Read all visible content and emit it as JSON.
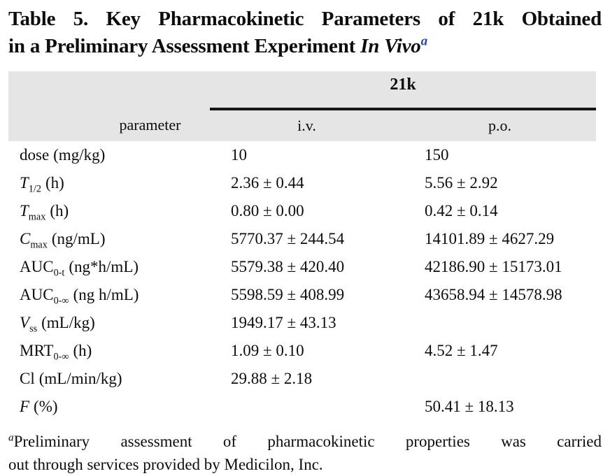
{
  "title": {
    "line1": "Table 5. Key Pharmacokinetic Parameters of 21k Obtained",
    "line2_prefix": "in a Preliminary Assessment Experiment ",
    "line2_italic": "In Vivo",
    "superscript": "a",
    "superscript_color": "#2646a8"
  },
  "table": {
    "group_header": "21k",
    "header_background": "#e5e5e5",
    "column_headers": {
      "parameter": "parameter",
      "iv": "i.v.",
      "po": "p.o."
    },
    "rows": [
      {
        "sym": "dose",
        "sub": "",
        "unit": "(mg/kg)",
        "iv": "10",
        "po": "150"
      },
      {
        "sym": "T",
        "sub": "1/2",
        "unit": "(h)",
        "iv": "2.36 ± 0.44",
        "po": "5.56 ± 2.92"
      },
      {
        "sym": "T",
        "sub": "max",
        "unit": "(h)",
        "iv": "0.80 ± 0.00",
        "po": "0.42 ± 0.14"
      },
      {
        "sym": "C",
        "sub": "max",
        "unit": "(ng/mL)",
        "iv": "5770.37 ± 244.54",
        "po": "14101.89 ± 4627.29"
      },
      {
        "sym": "AUC",
        "sub": "0-t",
        "unit": "(ng*h/mL)",
        "iv": "5579.38 ± 420.40",
        "po": "42186.90 ± 15173.01"
      },
      {
        "sym": "AUC",
        "sub": "0-∞",
        "unit": "(ng h/mL)",
        "iv": "5598.59 ± 408.99",
        "po": "43658.94 ± 14578.98"
      },
      {
        "sym": "V",
        "sub": "ss",
        "unit": "(mL/kg)",
        "iv": "1949.17 ± 43.13",
        "po": ""
      },
      {
        "sym": "MRT",
        "sub": "0-∞",
        "unit": "(h)",
        "iv": "1.09 ± 0.10",
        "po": "4.52 ± 1.47"
      },
      {
        "sym": "Cl",
        "sub": "",
        "unit": "(mL/min/kg)",
        "iv": "29.88 ± 2.18",
        "po": ""
      },
      {
        "sym": "F",
        "sub": "",
        "unit": "(%)",
        "iv": "",
        "po": "50.41 ± 18.13"
      }
    ]
  },
  "footnote": {
    "marker": "a",
    "line1": "Preliminary assessment of pharmacokinetic properties was carried",
    "line2": "out through services provided by Medicilon, Inc."
  }
}
